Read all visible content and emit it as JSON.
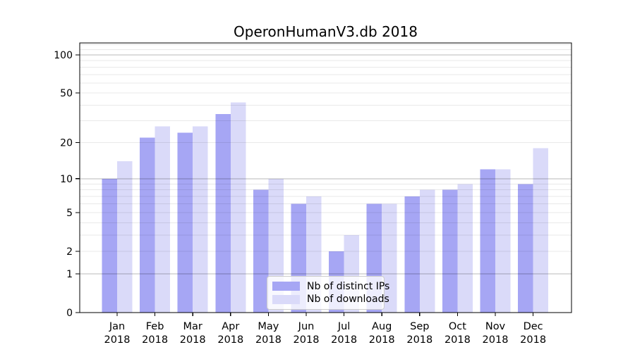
{
  "figure": {
    "title": "OperonHumanV3.db 2018"
  },
  "chart_data": {
    "type": "bar",
    "title": "OperonHumanV3.db 2018",
    "xlabel": "",
    "ylabel": "",
    "categories": [
      {
        "month": "Jan",
        "year": "2018"
      },
      {
        "month": "Feb",
        "year": "2018"
      },
      {
        "month": "Mar",
        "year": "2018"
      },
      {
        "month": "Apr",
        "year": "2018"
      },
      {
        "month": "May",
        "year": "2018"
      },
      {
        "month": "Jun",
        "year": "2018"
      },
      {
        "month": "Jul",
        "year": "2018"
      },
      {
        "month": "Aug",
        "year": "2018"
      },
      {
        "month": "Sep",
        "year": "2018"
      },
      {
        "month": "Oct",
        "year": "2018"
      },
      {
        "month": "Nov",
        "year": "2018"
      },
      {
        "month": "Dec",
        "year": "2018"
      }
    ],
    "series": [
      {
        "name": "Nb of distinct IPs",
        "color": "#a6a6f4",
        "values": [
          10,
          22,
          24,
          34,
          8,
          6,
          2,
          6,
          7,
          8,
          12,
          9
        ]
      },
      {
        "name": "Nb of downloads",
        "color": "#dadaf9",
        "values": [
          14,
          27,
          27,
          42,
          10,
          7,
          3,
          6,
          8,
          9,
          12,
          18
        ]
      }
    ],
    "yscale": "log1p",
    "ylim": [
      0,
      124
    ],
    "yticks": [
      0,
      1,
      2,
      5,
      10,
      20,
      50,
      100
    ],
    "major_gridlines": [
      1,
      10,
      100
    ],
    "minor_gridlines": [
      2,
      3,
      4,
      5,
      6,
      7,
      8,
      9,
      20,
      30,
      40,
      50,
      60,
      70,
      80,
      90,
      110,
      120
    ],
    "grid": true,
    "legend_position": "lower center"
  },
  "colors": {
    "spine": "#000000",
    "major_grid": "rgba(0,0,0,0.28)",
    "minor_grid": "rgba(0,0,0,0.085)",
    "tick_label": "#000000",
    "background": "#ffffff"
  }
}
